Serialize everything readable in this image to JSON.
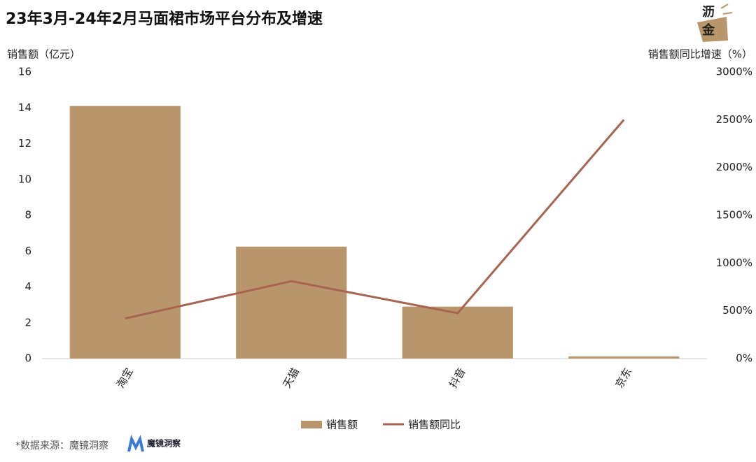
{
  "chart_data": {
    "type": "bar",
    "title": "23年3月-24年2月马面裙市场平台分布及增速",
    "y_label": "销售额（亿元）",
    "y2_label": "销售额同比增速（%）",
    "categories": [
      "淘宝",
      "天猫",
      "抖音",
      "京东"
    ],
    "series": [
      {
        "name": "销售额",
        "type": "bar",
        "color": "#b8956a",
        "values": [
          14.1,
          6.25,
          2.9,
          0.12
        ]
      },
      {
        "name": "销售额同比",
        "type": "line",
        "axis": "y2",
        "color": "#a86450",
        "values": [
          420,
          810,
          475,
          2500
        ]
      }
    ],
    "ylim": [
      0,
      16
    ],
    "yticks": [
      0,
      2,
      4,
      6,
      8,
      10,
      12,
      14,
      16
    ],
    "y2lim": [
      0,
      3000
    ],
    "y2ticks": [
      {
        "value": 0,
        "label": "0%"
      },
      {
        "value": 500,
        "label": "500%"
      },
      {
        "value": 1000,
        "label": "1000%"
      },
      {
        "value": 1500,
        "label": "1500%"
      },
      {
        "value": 2000,
        "label": "2000%"
      },
      {
        "value": 2500,
        "label": "2500%"
      },
      {
        "value": 3000,
        "label": "3000%"
      }
    ],
    "legend": "bottom"
  },
  "source": "*数据来源：魔镜洞察",
  "source_logo": "魔镜洞察",
  "brand_logo": [
    "沥",
    "金"
  ]
}
